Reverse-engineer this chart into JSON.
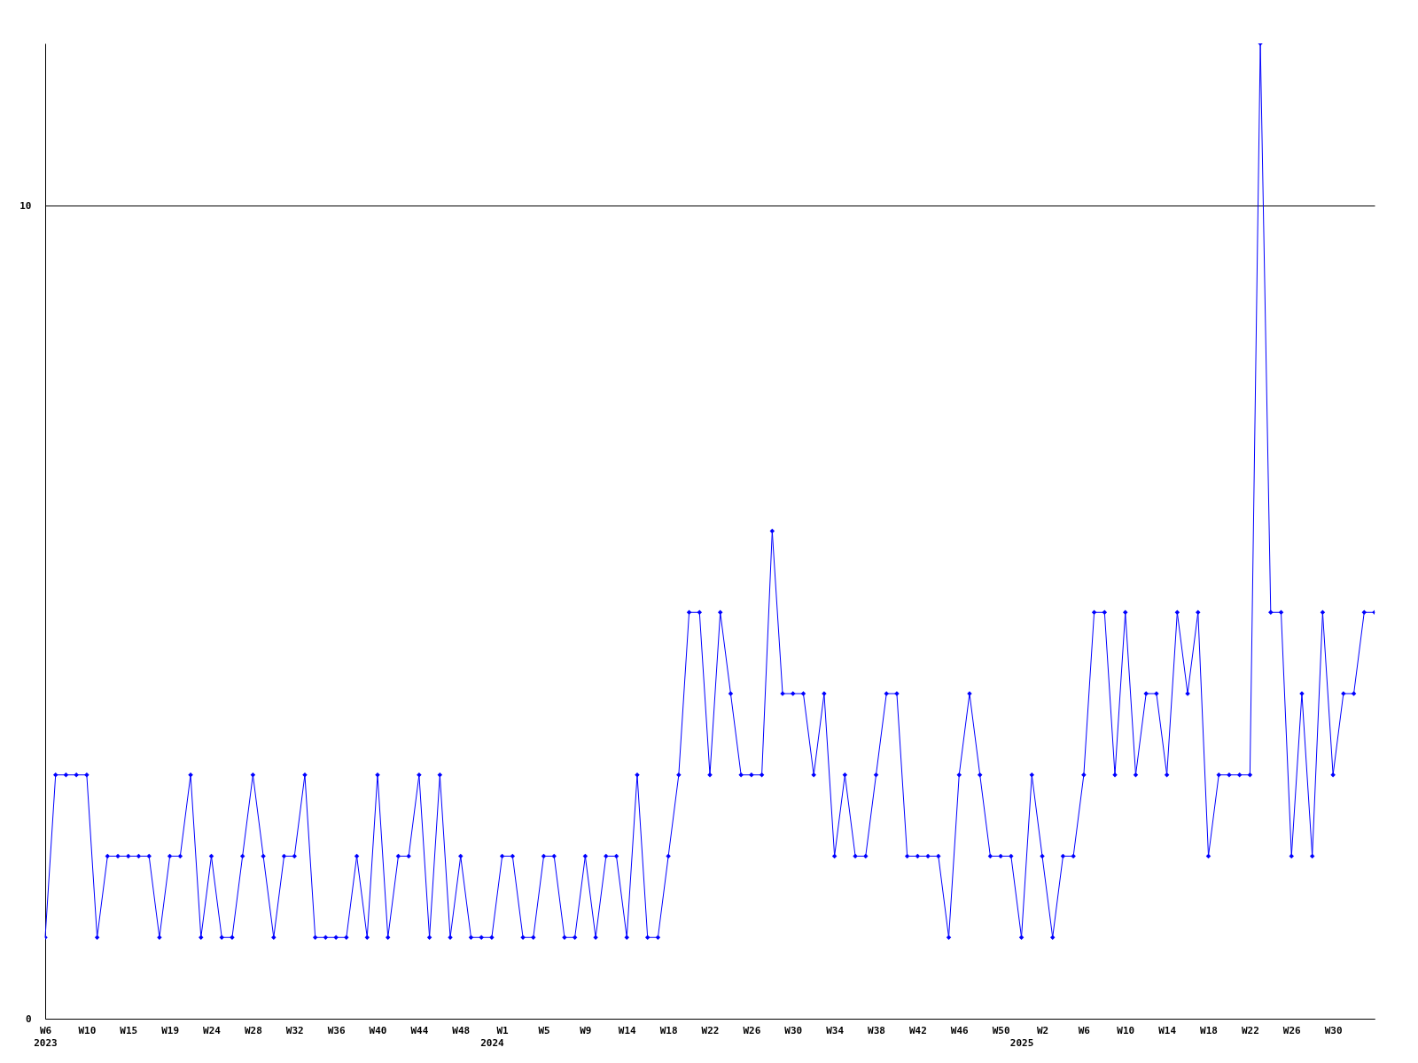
{
  "chart_data": {
    "type": "line",
    "categories": [
      "W6\n2023",
      null,
      null,
      null,
      "W10",
      null,
      null,
      null,
      "W15",
      null,
      null,
      null,
      "W19",
      null,
      null,
      null,
      "W24",
      null,
      null,
      null,
      "W28",
      null,
      null,
      null,
      "W32",
      null,
      null,
      null,
      "W36",
      null,
      null,
      null,
      "W40",
      null,
      null,
      null,
      "W44",
      null,
      null,
      null,
      "W48",
      null,
      null,
      "\n2024",
      "W1",
      null,
      null,
      null,
      "W5",
      null,
      null,
      null,
      "W9",
      null,
      null,
      null,
      "W14",
      null,
      null,
      null,
      "W18",
      null,
      null,
      null,
      "W22",
      null,
      null,
      null,
      "W26",
      null,
      null,
      null,
      "W30",
      null,
      null,
      null,
      "W34",
      null,
      null,
      null,
      "W38",
      null,
      null,
      null,
      "W42",
      null,
      null,
      null,
      "W46",
      null,
      null,
      null,
      "W50",
      null,
      "\n2025",
      null,
      "W2",
      null,
      null,
      null,
      "W6",
      null,
      null,
      null,
      "W10",
      null,
      null,
      null,
      "W14",
      null,
      null,
      null,
      "W18",
      null,
      null,
      null,
      "W22",
      null,
      null,
      null,
      "W26",
      null,
      null,
      null,
      "W30",
      null,
      null,
      null,
      null
    ],
    "series": [
      {
        "color": "#0000ff",
        "values": [
          1,
          3,
          3,
          3,
          3,
          1,
          2,
          2,
          2,
          2,
          2,
          1,
          2,
          2,
          3,
          1,
          2,
          1,
          1,
          2,
          3,
          2,
          1,
          2,
          2,
          3,
          1,
          1,
          1,
          1,
          2,
          1,
          3,
          1,
          2,
          2,
          3,
          1,
          3,
          1,
          2,
          1,
          1,
          1,
          2,
          2,
          1,
          1,
          2,
          2,
          1,
          1,
          2,
          1,
          2,
          2,
          1,
          3,
          1,
          1,
          2,
          3,
          5,
          5,
          3,
          5,
          4,
          3,
          3,
          3,
          6,
          4,
          4,
          4,
          3,
          4,
          2,
          3,
          2,
          2,
          3,
          4,
          4,
          2,
          2,
          2,
          2,
          1,
          3,
          4,
          3,
          2,
          2,
          2,
          1,
          3,
          2,
          1,
          2,
          2,
          3,
          5,
          5,
          3,
          5,
          3,
          4,
          4,
          3,
          5,
          4,
          5,
          2,
          3,
          3,
          3,
          3,
          12,
          5,
          5,
          2,
          4,
          2,
          5,
          3,
          4,
          4,
          5,
          5
        ]
      }
    ],
    "ylim": [
      0,
      12
    ],
    "yticks": [
      0,
      10
    ],
    "grid": "y",
    "marker": "diamond",
    "line_style": "solid"
  }
}
